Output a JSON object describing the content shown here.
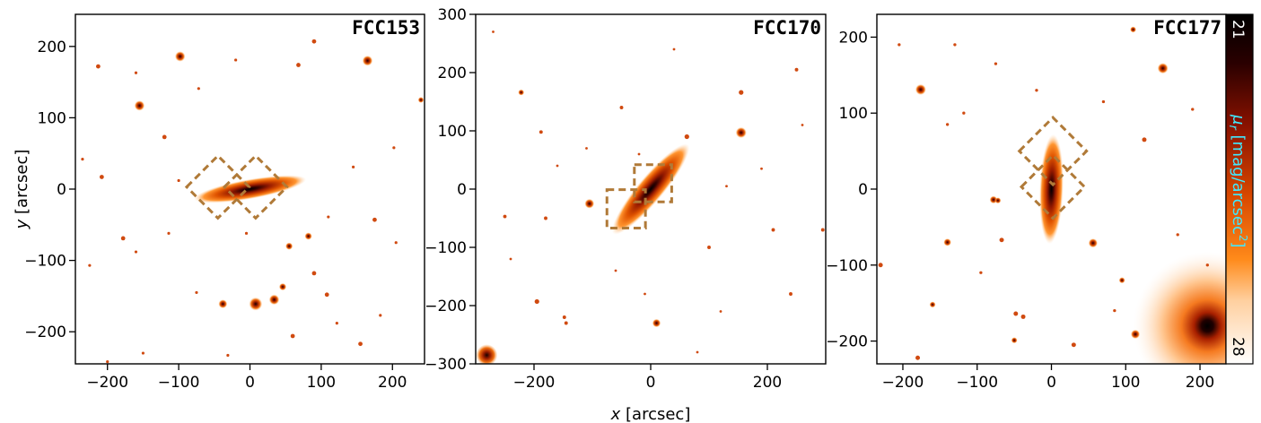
{
  "figure": {
    "xlabel": "x [arcsec]",
    "ylabel": "y [arcsec]",
    "panels": [
      {
        "id": "FCC153",
        "title": "FCC153",
        "xlim": [
          -245,
          245
        ],
        "ylim": [
          -245,
          245
        ],
        "xticks": [
          -200,
          -100,
          0,
          100,
          200
        ],
        "xtick_labels": [
          "−200",
          "−100",
          "0",
          "100",
          "200"
        ],
        "yticks": [
          -200,
          -100,
          0,
          100,
          200
        ],
        "ytick_labels": [
          "−200",
          "−100",
          "0",
          "100",
          "200"
        ],
        "galaxy": {
          "angle_deg": 10,
          "semi_major": 80,
          "semi_minor": 14
        },
        "boxes": [
          {
            "cx": -45,
            "cy": 3,
            "w": 62,
            "h": 62,
            "angle_deg": 45
          },
          {
            "cx": 8,
            "cy": 3,
            "w": 62,
            "h": 62,
            "angle_deg": 45
          }
        ],
        "sources": [
          [
            -155,
            117,
            7
          ],
          [
            -98,
            186,
            7
          ],
          [
            165,
            180,
            7
          ],
          [
            8,
            -161,
            9
          ],
          [
            -38,
            -161,
            6
          ],
          [
            34,
            -155,
            7
          ],
          [
            46,
            -137,
            5
          ],
          [
            82,
            -66,
            5
          ],
          [
            55,
            -80,
            5
          ],
          [
            90,
            207,
            3
          ],
          [
            -213,
            172,
            3
          ],
          [
            -160,
            163,
            2
          ],
          [
            -120,
            73,
            3
          ],
          [
            -208,
            17,
            3
          ],
          [
            -178,
            -69,
            3
          ],
          [
            -160,
            -88,
            2
          ],
          [
            68,
            174,
            3
          ],
          [
            90,
            -118,
            3
          ],
          [
            108,
            -148,
            3
          ],
          [
            240,
            125,
            4
          ],
          [
            -75,
            -145,
            2
          ],
          [
            175,
            -43,
            3
          ],
          [
            155,
            -217,
            3
          ],
          [
            -200,
            -242,
            2
          ],
          [
            -72,
            141,
            2
          ],
          [
            -20,
            181,
            2
          ],
          [
            122,
            -188,
            2
          ],
          [
            183,
            -177,
            2
          ],
          [
            -114,
            -62,
            2
          ],
          [
            202,
            58,
            2
          ],
          [
            205,
            -75,
            2
          ],
          [
            -225,
            -107,
            2
          ],
          [
            -31,
            -233,
            2
          ],
          [
            60,
            -206,
            3
          ],
          [
            -100,
            12,
            2
          ],
          [
            145,
            31,
            2
          ],
          [
            -5,
            -62,
            2
          ],
          [
            -235,
            42,
            2
          ],
          [
            -150,
            -230,
            2
          ],
          [
            110,
            -39,
            2
          ]
        ]
      },
      {
        "id": "FCC170",
        "title": "FCC170",
        "xlim": [
          -300,
          300
        ],
        "ylim": [
          -300,
          300
        ],
        "xticks": [
          -200,
          0,
          200
        ],
        "xtick_labels": [
          "−200",
          "0",
          "200"
        ],
        "yticks": [
          -300,
          -200,
          -100,
          0,
          100,
          200,
          300
        ],
        "ytick_labels": [
          "−300",
          "−200",
          "−100",
          "0",
          "100",
          "200",
          "300"
        ],
        "galaxy": {
          "angle_deg": 50,
          "semi_major": 100,
          "semi_minor": 22
        },
        "boxes": [
          {
            "cx": -42,
            "cy": -34,
            "w": 66,
            "h": 66,
            "angle_deg": 0
          },
          {
            "cx": 4,
            "cy": 10,
            "w": 64,
            "h": 64,
            "angle_deg": 0
          }
        ],
        "sources": [
          [
            155,
            97,
            9
          ],
          [
            -105,
            -25,
            8
          ],
          [
            10,
            -230,
            7
          ],
          [
            -281,
            -285,
            18
          ],
          [
            -222,
            166,
            5
          ],
          [
            155,
            166,
            4
          ],
          [
            62,
            90,
            4
          ],
          [
            -250,
            -47,
            3
          ],
          [
            -180,
            -50,
            3
          ],
          [
            -195,
            -193,
            4
          ],
          [
            -188,
            98,
            3
          ],
          [
            -145,
            -230,
            3
          ],
          [
            -148,
            -220,
            3
          ],
          [
            250,
            205,
            3
          ],
          [
            210,
            -70,
            3
          ],
          [
            240,
            -180,
            3
          ],
          [
            295,
            -70,
            3
          ],
          [
            100,
            -100,
            3
          ],
          [
            -10,
            -180,
            2
          ],
          [
            40,
            240,
            2
          ],
          [
            -270,
            270,
            2
          ],
          [
            -50,
            140,
            3
          ],
          [
            -110,
            70,
            2
          ],
          [
            130,
            5,
            2
          ],
          [
            -160,
            40,
            2
          ],
          [
            80,
            -280,
            2
          ],
          [
            190,
            35,
            2
          ],
          [
            -240,
            -120,
            2
          ],
          [
            260,
            110,
            2
          ],
          [
            -60,
            -140,
            2
          ],
          [
            -20,
            60,
            2
          ],
          [
            120,
            -210,
            2
          ]
        ]
      },
      {
        "id": "FCC177",
        "title": "FCC177",
        "xlim": [
          -235,
          235
        ],
        "ylim": [
          -230,
          230
        ],
        "xticks": [
          -200,
          -100,
          0,
          100,
          200
        ],
        "xtick_labels": [
          "−200",
          "−100",
          "0",
          "100",
          "200"
        ],
        "yticks": [
          -200,
          -100,
          0,
          100,
          200
        ],
        "ytick_labels": [
          "−200",
          "−100",
          "0",
          "100",
          "200"
        ],
        "galaxy": {
          "angle_deg": 88,
          "semi_major": 74,
          "semi_minor": 16
        },
        "boxes": [
          {
            "cx": 2,
            "cy": 50,
            "w": 64,
            "h": 64,
            "angle_deg": 45
          },
          {
            "cx": 2,
            "cy": 3,
            "w": 60,
            "h": 60,
            "angle_deg": 45
          }
        ],
        "sources": [
          [
            -176,
            131,
            7
          ],
          [
            150,
            159,
            7
          ],
          [
            56,
            -71,
            6
          ],
          [
            -140,
            -70,
            5
          ],
          [
            -160,
            -152,
            4
          ],
          [
            110,
            210,
            4
          ],
          [
            -78,
            -14,
            5
          ],
          [
            -72,
            -15,
            4
          ],
          [
            95,
            -120,
            4
          ],
          [
            113,
            -191,
            6
          ],
          [
            -50,
            -199,
            4
          ],
          [
            -230,
            -100,
            3
          ],
          [
            -67,
            -67,
            3
          ],
          [
            -48,
            -164,
            3
          ],
          [
            -180,
            -222,
            3
          ],
          [
            -38,
            -168,
            3
          ],
          [
            -118,
            100,
            2
          ],
          [
            -140,
            85,
            2
          ],
          [
            70,
            115,
            2
          ],
          [
            -205,
            190,
            2
          ],
          [
            -130,
            190,
            2
          ],
          [
            85,
            -160,
            2
          ],
          [
            30,
            -205,
            3
          ],
          [
            -75,
            165,
            2
          ],
          [
            190,
            105,
            2
          ],
          [
            -95,
            -110,
            2
          ],
          [
            125,
            65,
            3
          ],
          [
            210,
            -100,
            2
          ],
          [
            -20,
            130,
            2
          ],
          [
            170,
            -60,
            2
          ]
        ],
        "bright_star": {
          "x": 210,
          "y": -180,
          "r": 100
        }
      }
    ],
    "colorbar": {
      "label": "μr [mag/arcsec2]",
      "min_label": "21",
      "max_label": "28",
      "min": 21,
      "max": 28,
      "colormap": "gist_heat_r",
      "stops": [
        "#ffffff",
        "#ffd0a0",
        "#ff8a1a",
        "#d84800",
        "#8a1200",
        "#2a0000",
        "#000000"
      ]
    }
  }
}
